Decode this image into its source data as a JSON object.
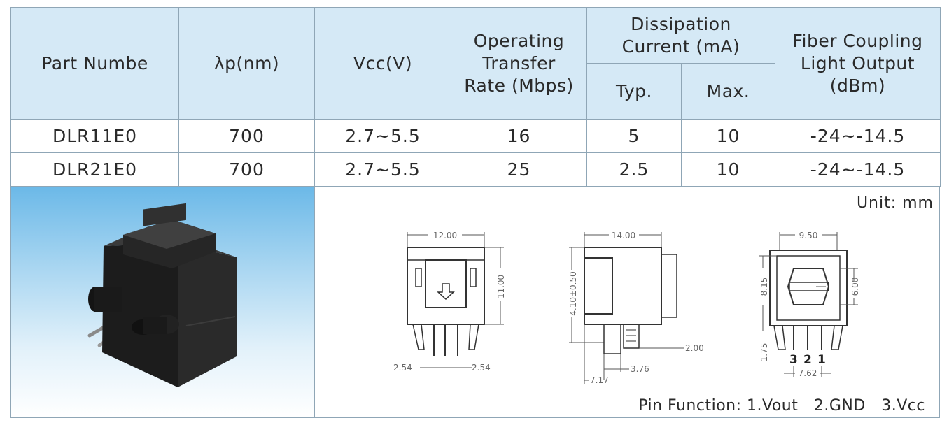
{
  "table": {
    "headers": {
      "part": "Part Numbe",
      "lambda": "λp(nm)",
      "vcc": "Vcc(V)",
      "rate": "Operating Transfer Rate (Mbps)",
      "dissipation": "Dissipation Current (mA)",
      "typ": "Typ.",
      "max": "Max.",
      "fiber": "Fiber Coupling Light Output (dBm)"
    },
    "rows": [
      {
        "part": "DLR11E0",
        "lambda": "700",
        "vcc": "2.7~5.5",
        "rate": "16",
        "typ": "5",
        "max": "10",
        "fiber": "-24~-14.5"
      },
      {
        "part": "DLR21E0",
        "lambda": "700",
        "vcc": "2.7~5.5",
        "rate": "25",
        "typ": "2.5",
        "max": "10",
        "fiber": "-24~-14.5"
      }
    ]
  },
  "drawing": {
    "unit_label": "Unit:  mm",
    "pin_function": "Pin Function: 1.Vout   2.GND   3.Vcc",
    "front": {
      "width": "12.00",
      "height": "11.00",
      "pitch_left": "2.54",
      "pitch_right": "2.54"
    },
    "side": {
      "width": "14.00",
      "height": "4.10±0.50",
      "pin_offset": "2.00",
      "d1": "3.76",
      "d2": "7.17"
    },
    "back": {
      "width": "9.50",
      "h1": "8.15",
      "h2": "6.00",
      "pin_len": "1.75",
      "pitch": "7.62",
      "pins": [
        "3",
        "2",
        "1"
      ]
    }
  }
}
